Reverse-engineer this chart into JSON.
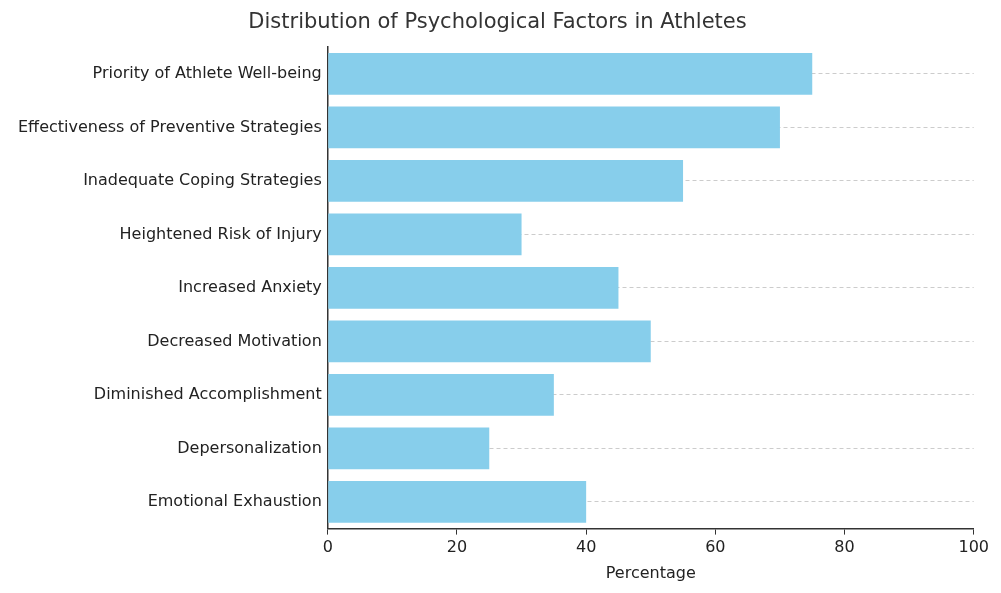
{
  "chart_data": {
    "type": "bar",
    "orientation": "horizontal",
    "title": "Distribution of Psychological Factors in Athletes",
    "xlabel": "Percentage",
    "categories": [
      "Priority of Athlete Well-being",
      "Effectiveness of Preventive Strategies",
      "Inadequate Coping Strategies",
      "Heightened Risk of Injury",
      "Increased Anxiety",
      "Decreased Motivation",
      "Diminished Accomplishment",
      "Depersonalization",
      "Emotional Exhaustion"
    ],
    "values": [
      75,
      70,
      55,
      30,
      45,
      50,
      35,
      25,
      40
    ],
    "color": "#87ceeb",
    "xlim": [
      0,
      100
    ],
    "xticks": [
      0,
      20,
      40,
      60,
      80,
      100
    ],
    "grid": "y",
    "legend": false
  }
}
